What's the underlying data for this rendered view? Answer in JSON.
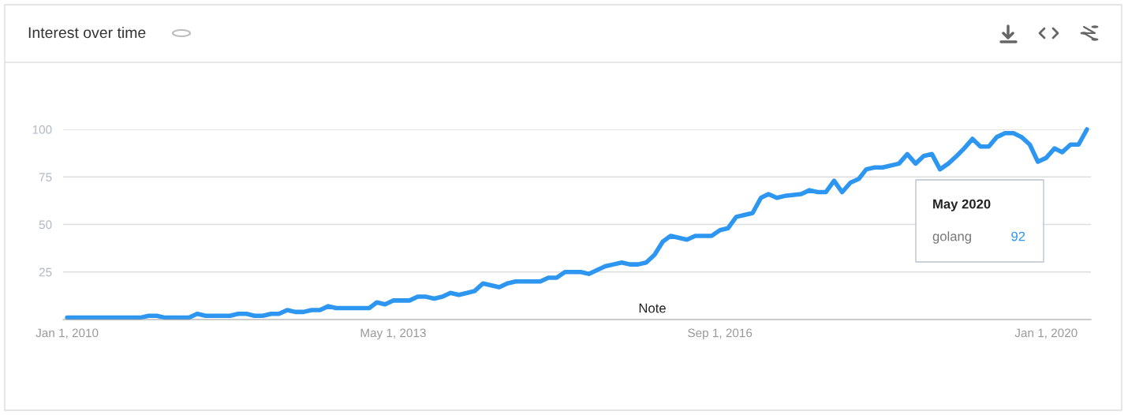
{
  "chart_data": {
    "type": "line",
    "title": "Interest over time",
    "x": [
      "2010-01",
      "2010-10",
      "2010-11",
      "2010-12",
      "2011-01",
      "2011-04",
      "2011-05",
      "2011-06",
      "2011-09",
      "2011-10",
      "2011-11",
      "2011-12",
      "2012-01",
      "2012-02",
      "2012-03",
      "2012-04",
      "2012-05",
      "2012-06",
      "2012-07",
      "2012-08",
      "2012-09",
      "2012-10",
      "2013-02",
      "2013-03",
      "2013-04",
      "2013-05",
      "2013-07",
      "2013-08",
      "2013-09",
      "2013-10",
      "2013-11",
      "2013-12",
      "2014-01",
      "2014-02",
      "2014-03",
      "2014-04",
      "2014-06",
      "2014-07",
      "2014-08",
      "2014-11",
      "2014-12",
      "2015-01",
      "2015-02",
      "2015-04",
      "2015-05",
      "2015-06",
      "2015-07",
      "2015-08",
      "2015-09",
      "2015-10",
      "2015-11",
      "2015-12",
      "2016-01",
      "2016-02",
      "2016-03",
      "2016-05",
      "2016-06",
      "2016-08",
      "2016-09",
      "2016-10",
      "2016-11",
      "2016-12",
      "2017-01",
      "2017-02",
      "2017-03",
      "2017-04",
      "2017-05",
      "2017-07",
      "2017-08",
      "2017-09",
      "2017-10",
      "2017-11",
      "2017-12",
      "2018-01",
      "2018-02",
      "2018-03",
      "2018-04",
      "2018-05",
      "2018-07",
      "2018-08",
      "2018-09",
      "2018-10",
      "2018-11",
      "2018-12",
      "2019-01",
      "2019-02",
      "2019-03",
      "2019-04",
      "2019-05",
      "2019-06",
      "2019-07",
      "2019-08",
      "2019-09",
      "2019-10",
      "2019-11",
      "2019-12",
      "2020-01",
      "2020-02",
      "2020-03",
      "2020-04",
      "2020-05",
      "2020-06"
    ],
    "series": [
      {
        "name": "golang",
        "color": "#2d96f0",
        "values": [
          1,
          1,
          2,
          2,
          1,
          1,
          3,
          2,
          2,
          3,
          3,
          2,
          2,
          3,
          3,
          5,
          4,
          4,
          5,
          5,
          7,
          6,
          6,
          9,
          8,
          10,
          10,
          12,
          12,
          11,
          12,
          14,
          13,
          14,
          15,
          19,
          17,
          19,
          20,
          20,
          22,
          22,
          25,
          25,
          24,
          26,
          28,
          29,
          30,
          29,
          29,
          30,
          34,
          41,
          44,
          42,
          44,
          44,
          47,
          48,
          54,
          55,
          56,
          64,
          66,
          64,
          65,
          66,
          68,
          67,
          67,
          73,
          67,
          72,
          74,
          79,
          80,
          80,
          82,
          87,
          82,
          86,
          87,
          79,
          82,
          86,
          90,
          95,
          91,
          91,
          96,
          98,
          98,
          96,
          92,
          83,
          85,
          90,
          88,
          92,
          92,
          100
        ]
      }
    ],
    "xlim": [
      "2009-12-17",
      "2020-06-16"
    ],
    "xticks": [
      {
        "value": "2010-01-01",
        "label": "Jan 1, 2010"
      },
      {
        "value": "2013-05-01",
        "label": "May 1, 2013"
      },
      {
        "value": "2016-09-01",
        "label": "Sep 1, 2016"
      },
      {
        "value": "2020-01-01",
        "label": "Jan 1, 2020"
      }
    ],
    "ylim": [
      0,
      100
    ],
    "yticks": [
      25,
      50,
      75,
      100
    ],
    "grid": "y",
    "legend": false,
    "marker": "none",
    "line_style": "solid",
    "annotations": [
      "Note",
      "May 2020",
      "92"
    ]
  }
}
